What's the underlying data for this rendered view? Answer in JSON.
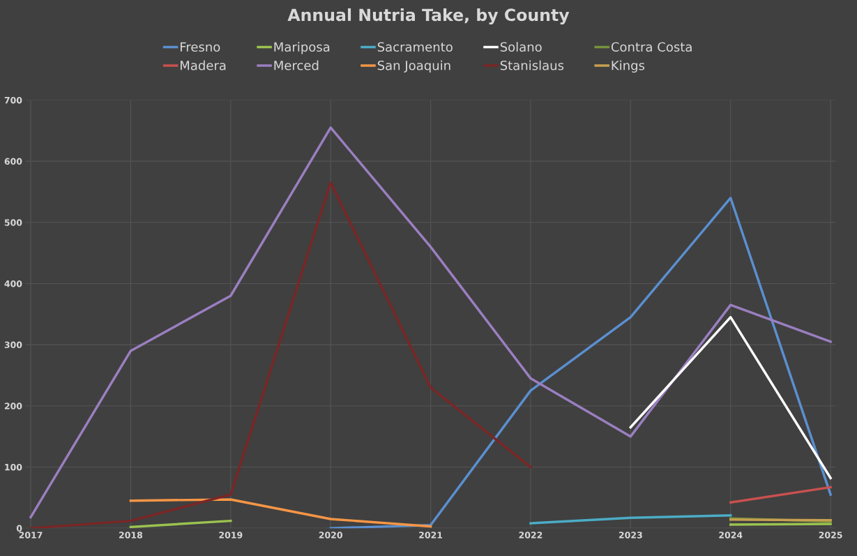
{
  "chart_data": {
    "type": "line",
    "title": "Annual Nutria Take, by County",
    "categories": [
      "2017",
      "2018",
      "2019",
      "2020",
      "2021",
      "2022",
      "2023",
      "2024",
      "2025"
    ],
    "series": [
      {
        "name": "Fresno",
        "color": "#5b8fd0",
        "values": [
          null,
          null,
          null,
          0,
          5,
          225,
          345,
          540,
          55
        ]
      },
      {
        "name": "Madera",
        "color": "#c9514e",
        "values": [
          null,
          null,
          null,
          null,
          null,
          null,
          null,
          42,
          67
        ]
      },
      {
        "name": "Mariposa",
        "color": "#9bc34f",
        "values": [
          null,
          2,
          12,
          null,
          null,
          null,
          null,
          6,
          7
        ]
      },
      {
        "name": "Merced",
        "color": "#9a7fc0",
        "values": [
          18,
          290,
          380,
          655,
          460,
          245,
          150,
          365,
          305
        ]
      },
      {
        "name": "Sacramento",
        "color": "#4bacc6",
        "values": [
          null,
          null,
          null,
          null,
          null,
          8,
          17,
          21,
          null
        ]
      },
      {
        "name": "San Joaquin",
        "color": "#f79646",
        "values": [
          null,
          45,
          47,
          15,
          3,
          null,
          null,
          null,
          null
        ]
      },
      {
        "name": "Solano",
        "color": "#ffffff",
        "values": [
          null,
          null,
          null,
          null,
          null,
          null,
          165,
          345,
          82
        ]
      },
      {
        "name": "Stanislaus",
        "color": "#7a2626",
        "values": [
          0,
          12,
          55,
          565,
          230,
          100,
          null,
          null,
          null
        ]
      },
      {
        "name": "Contra Costa",
        "color": "#77933c",
        "values": [
          null,
          null,
          null,
          null,
          null,
          null,
          null,
          16,
          11
        ]
      },
      {
        "name": "Kings",
        "color": "#c8a050",
        "values": [
          null,
          null,
          null,
          null,
          null,
          null,
          null,
          14,
          13
        ]
      }
    ],
    "ylim": [
      0,
      700
    ],
    "yticks": [
      0,
      100,
      200,
      300,
      400,
      500,
      600,
      700
    ],
    "grid": true,
    "legend": "top",
    "marker": "none",
    "line_style": "solid"
  }
}
